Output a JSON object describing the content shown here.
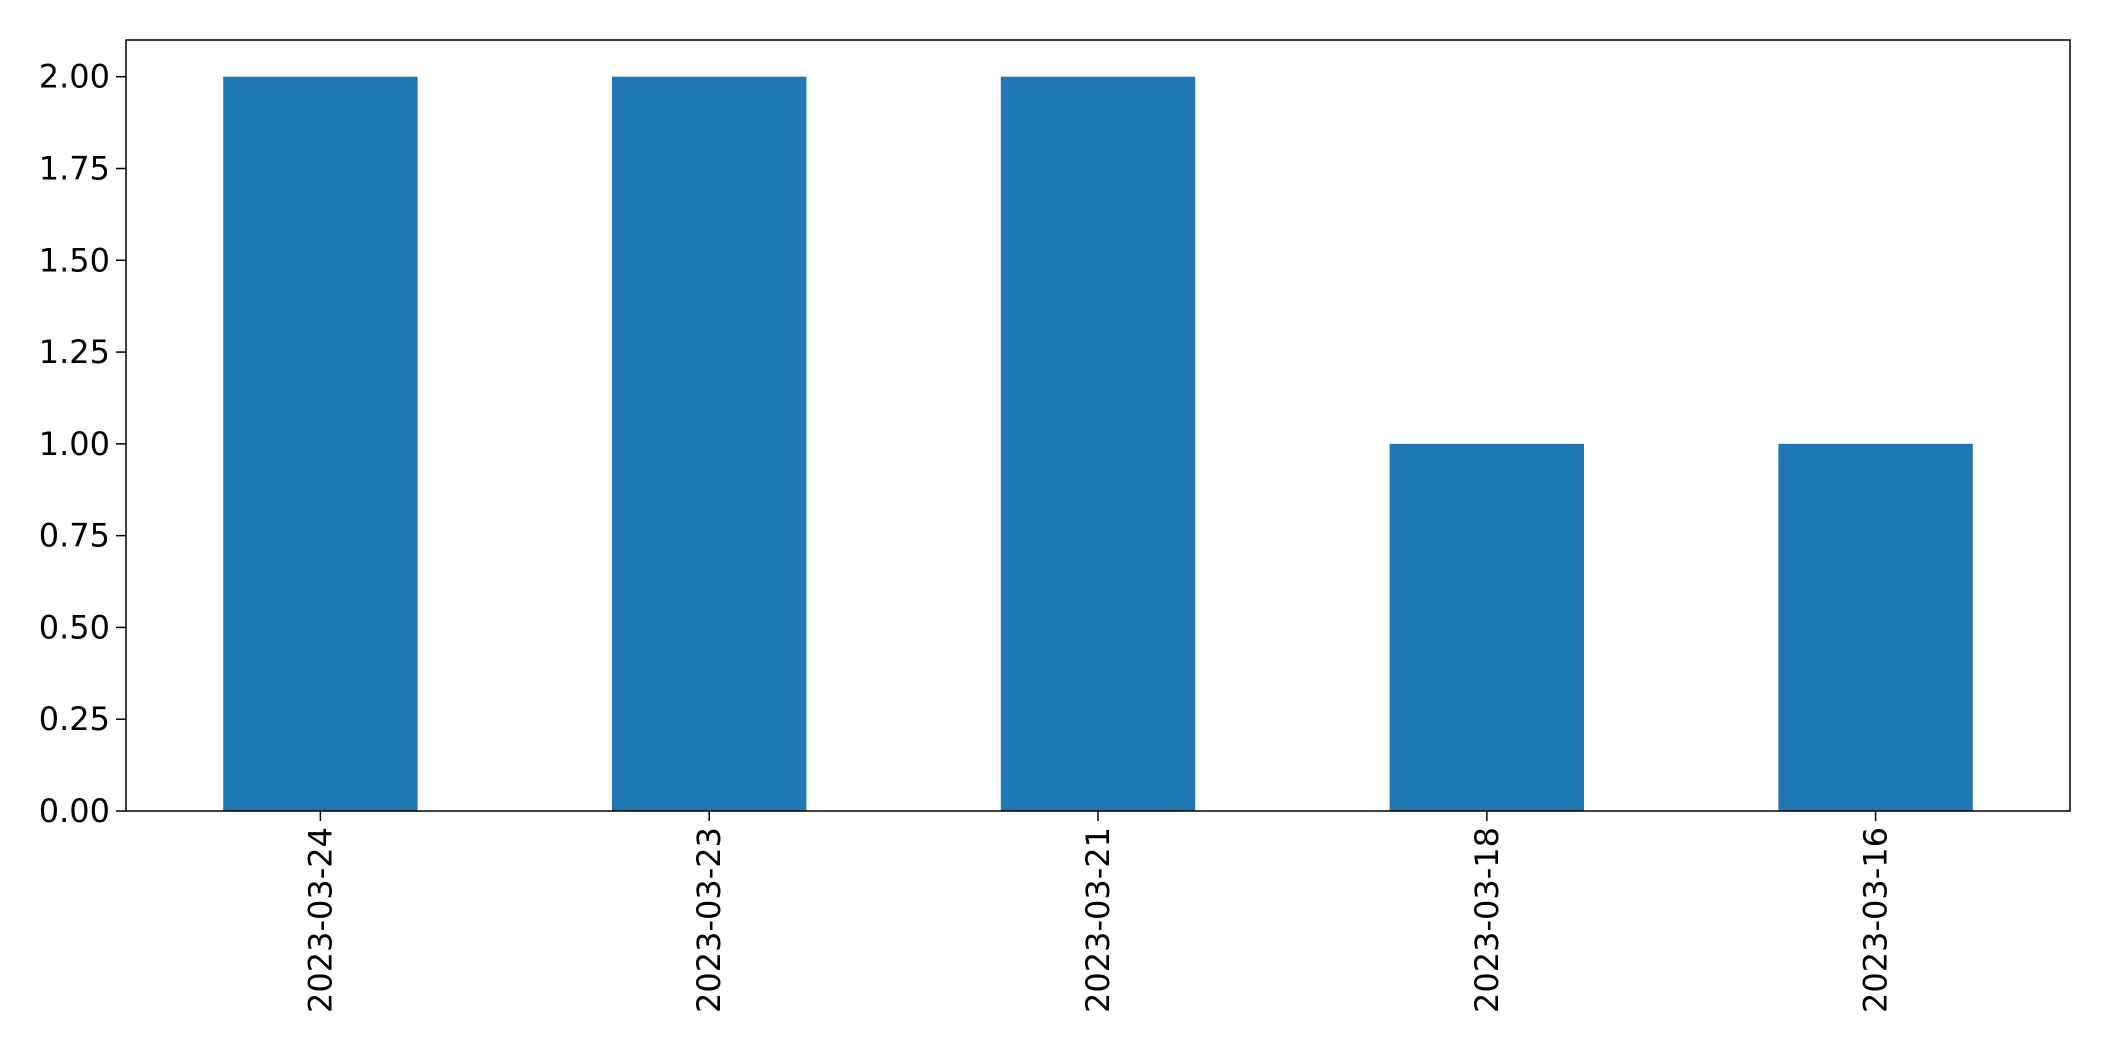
{
  "chart_data": {
    "type": "bar",
    "categories": [
      "2023-03-24",
      "2023-03-23",
      "2023-03-21",
      "2023-03-18",
      "2023-03-16"
    ],
    "values": [
      2,
      2,
      2,
      1,
      1
    ],
    "title": "",
    "xlabel": "",
    "ylabel": "",
    "ylim": [
      0,
      2.1
    ],
    "yticks": [
      "0.00",
      "0.25",
      "0.50",
      "0.75",
      "1.00",
      "1.25",
      "1.50",
      "1.75",
      "2.00"
    ],
    "grid": false,
    "legend": "none",
    "x_tick_rotation": "vertical",
    "bar_color": "#1f77b4"
  }
}
